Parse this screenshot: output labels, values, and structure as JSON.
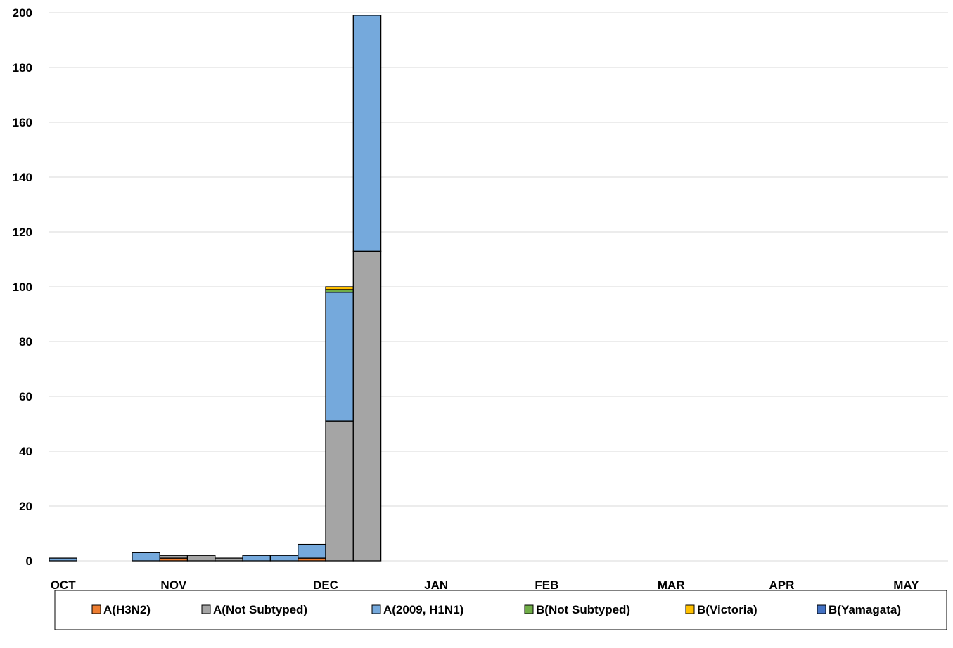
{
  "chart_data": {
    "type": "bar",
    "stacked": true,
    "title": "",
    "xlabel": "",
    "ylabel": "",
    "ylim": [
      0,
      200
    ],
    "yticks": [
      0,
      20,
      40,
      60,
      80,
      100,
      120,
      140,
      160,
      180,
      200
    ],
    "grid": true,
    "legend_position": "bottom",
    "month_labels": [
      "OCT",
      "NOV",
      "DEC",
      "JAN",
      "FEB",
      "MAR",
      "APR",
      "MAY"
    ],
    "month_label_week_index": [
      0,
      4,
      9.5,
      13.5,
      17.5,
      22,
      26,
      30.5
    ],
    "weeks": 32,
    "series": [
      {
        "name": "A(H3N2)",
        "color": "#ED7D31",
        "values": [
          0,
          0,
          0,
          0,
          1,
          0,
          0,
          0,
          0,
          1,
          0,
          0,
          0,
          0,
          0,
          0,
          0,
          0,
          0,
          0,
          0,
          0,
          0,
          0,
          0,
          0,
          0,
          0,
          0,
          0,
          0,
          0
        ]
      },
      {
        "name": "A(Not  Subtyped)",
        "color": "#A5A5A5",
        "values": [
          0,
          0,
          0,
          0,
          1,
          2,
          1,
          0,
          0,
          0,
          51,
          113,
          0,
          0,
          0,
          0,
          0,
          0,
          0,
          0,
          0,
          0,
          0,
          0,
          0,
          0,
          0,
          0,
          0,
          0,
          0,
          0
        ]
      },
      {
        "name": "A(2009, H1N1)",
        "color": "#75A9DC",
        "values": [
          1,
          0,
          0,
          3,
          0,
          0,
          0,
          2,
          2,
          5,
          47,
          86,
          0,
          0,
          0,
          0,
          0,
          0,
          0,
          0,
          0,
          0,
          0,
          0,
          0,
          0,
          0,
          0,
          0,
          0,
          0,
          0
        ]
      },
      {
        "name": "B(Not Subtyped)",
        "color": "#70AD47",
        "values": [
          0,
          0,
          0,
          0,
          0,
          0,
          0,
          0,
          0,
          0,
          1,
          0,
          0,
          0,
          0,
          0,
          0,
          0,
          0,
          0,
          0,
          0,
          0,
          0,
          0,
          0,
          0,
          0,
          0,
          0,
          0,
          0
        ]
      },
      {
        "name": "B(Victoria)",
        "color": "#FFC000",
        "values": [
          0,
          0,
          0,
          0,
          0,
          0,
          0,
          0,
          0,
          0,
          1,
          0,
          0,
          0,
          0,
          0,
          0,
          0,
          0,
          0,
          0,
          0,
          0,
          0,
          0,
          0,
          0,
          0,
          0,
          0,
          0,
          0
        ]
      },
      {
        "name": "B(Yamagata)",
        "color": "#4472C4",
        "values": [
          0,
          0,
          0,
          0,
          0,
          0,
          0,
          0,
          0,
          0,
          0,
          0,
          0,
          0,
          0,
          0,
          0,
          0,
          0,
          0,
          0,
          0,
          0,
          0,
          0,
          0,
          0,
          0,
          0,
          0,
          0,
          0
        ]
      }
    ]
  },
  "colors": {
    "grid": "#D9D9D9",
    "bar_stroke": "#000000",
    "legend_border": "#000000",
    "axis_text": "#000000"
  }
}
